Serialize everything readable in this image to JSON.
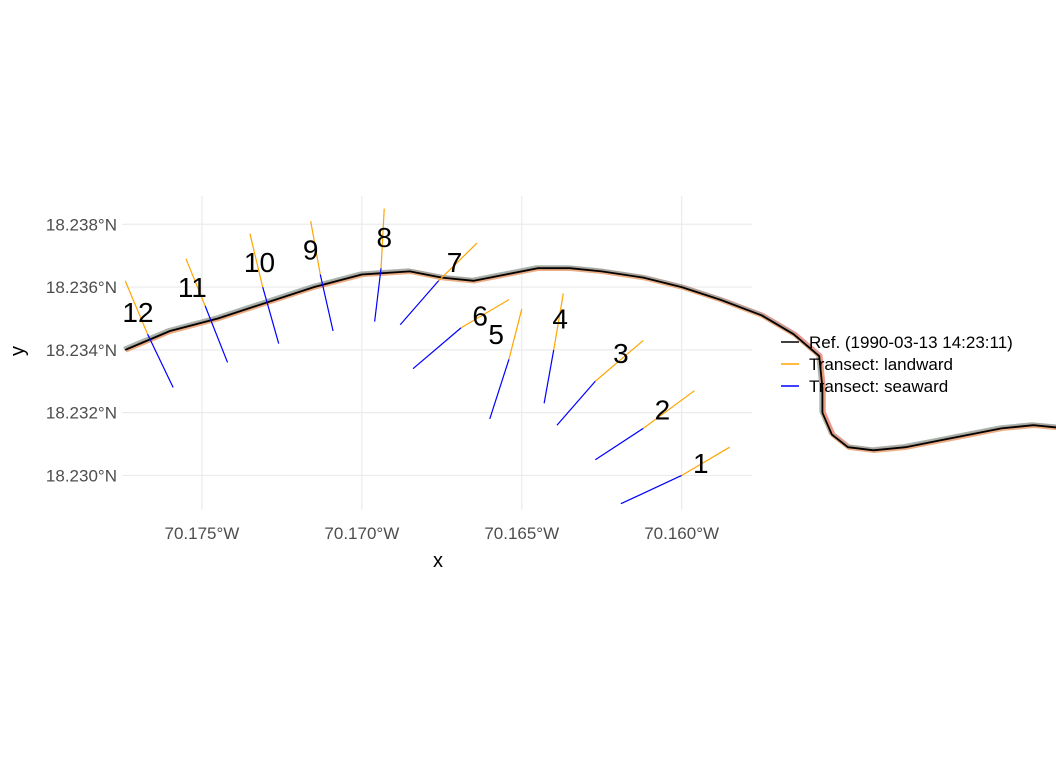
{
  "chart_data": {
    "type": "line",
    "xlabel": "x",
    "ylabel": "y",
    "xlim": [
      -70.1775,
      -70.1578
    ],
    "ylim": [
      18.2289,
      18.2389
    ],
    "x_ticks": [
      {
        "value": -70.175,
        "label": "70.175°W"
      },
      {
        "value": -70.17,
        "label": "70.170°W"
      },
      {
        "value": -70.165,
        "label": "70.165°W"
      },
      {
        "value": -70.16,
        "label": "70.160°W"
      }
    ],
    "y_ticks": [
      {
        "value": 18.23,
        "label": "18.230°N"
      },
      {
        "value": 18.232,
        "label": "18.232°N"
      },
      {
        "value": 18.234,
        "label": "18.234°N"
      },
      {
        "value": 18.236,
        "label": "18.236°N"
      },
      {
        "value": 18.238,
        "label": "18.238°N"
      }
    ],
    "grid": true,
    "legend_position": "right",
    "legend": [
      {
        "label": "Ref. (1990-03-13 14:23:11)",
        "color": "#000000"
      },
      {
        "label": "Transect: landward",
        "color": "#FFA500"
      },
      {
        "label": "Transect: seaward",
        "color": "#0000FF"
      }
    ],
    "reference_line": {
      "name": "Ref. (1990-03-13 14:23:11)",
      "color": "#000000",
      "points": [
        [
          -70.1774,
          18.234
        ],
        [
          -70.176,
          18.2346
        ],
        [
          -70.1745,
          18.235
        ],
        [
          -70.173,
          18.2355
        ],
        [
          -70.1715,
          18.236
        ],
        [
          -70.17,
          18.2364
        ],
        [
          -70.1685,
          18.2365
        ],
        [
          -70.1675,
          18.2363
        ],
        [
          -70.1665,
          18.2362
        ],
        [
          -70.1655,
          18.2364
        ],
        [
          -70.1645,
          18.2366
        ],
        [
          -70.1635,
          18.2366
        ],
        [
          -70.1625,
          18.2365
        ],
        [
          -70.1612,
          18.2363
        ],
        [
          -70.16,
          18.236
        ],
        [
          -70.1588,
          18.2356
        ],
        [
          -70.1575,
          18.2351
        ],
        [
          -70.1565,
          18.2345
        ],
        [
          -70.1557,
          18.2338
        ],
        [
          -70.1556,
          18.2328
        ],
        [
          -70.1556,
          18.232
        ],
        [
          -70.1553,
          18.2313
        ],
        [
          -70.1548,
          18.2309
        ],
        [
          -70.154,
          18.2308
        ],
        [
          -70.153,
          18.2309
        ],
        [
          -70.152,
          18.2311
        ],
        [
          -70.151,
          18.2313
        ],
        [
          -70.15,
          18.2315
        ],
        [
          -70.149,
          18.2316
        ],
        [
          -70.148,
          18.2315
        ],
        [
          -70.147,
          18.2312
        ],
        [
          -70.146,
          18.2308
        ],
        [
          -70.145,
          18.2302
        ],
        [
          -70.144,
          18.2296
        ],
        [
          -70.143,
          18.229
        ],
        [
          -70.142,
          18.2284
        ],
        [
          -70.141,
          18.2278
        ],
        [
          -70.14,
          18.2271
        ],
        [
          -70.1393,
          18.2265
        ],
        [
          -70.1388,
          18.2259
        ],
        [
          -70.1385,
          18.2255
        ],
        [
          -70.138,
          18.2252
        ]
      ]
    },
    "shorelines": [
      {
        "color": "#F08080",
        "offset": [
          5e-05,
          2e-05
        ]
      },
      {
        "color": "#9AA8A0",
        "offset": [
          -4e-05,
          4e-05
        ]
      },
      {
        "color": "#E8A070",
        "offset": [
          2e-05,
          -3e-05
        ]
      }
    ],
    "transects": [
      {
        "id": "1",
        "origin": [
          -70.16,
          18.23
        ],
        "landward": [
          -70.1585,
          18.2309
        ],
        "seaward": [
          -70.1619,
          18.2291
        ],
        "label_at": [
          -70.1594,
          18.2304
        ]
      },
      {
        "id": "2",
        "origin": [
          -70.1612,
          18.2315
        ],
        "landward": [
          -70.1596,
          18.2327
        ],
        "seaward": [
          -70.1627,
          18.2305
        ],
        "label_at": [
          -70.1606,
          18.2321
        ]
      },
      {
        "id": "3",
        "origin": [
          -70.1627,
          18.233
        ],
        "landward": [
          -70.1612,
          18.2343
        ],
        "seaward": [
          -70.1639,
          18.2316
        ],
        "label_at": [
          -70.1619,
          18.2339
        ]
      },
      {
        "id": "4",
        "origin": [
          -70.164,
          18.234
        ],
        "landward": [
          -70.1637,
          18.2358
        ],
        "seaward": [
          -70.1643,
          18.2323
        ],
        "label_at": [
          -70.1638,
          18.235
        ]
      },
      {
        "id": "5",
        "origin": [
          -70.1654,
          18.2337
        ],
        "landward": [
          -70.165,
          18.2353
        ],
        "seaward": [
          -70.166,
          18.2318
        ],
        "label_at": [
          -70.1658,
          18.2345
        ]
      },
      {
        "id": "6",
        "origin": [
          -70.1669,
          18.2347
        ],
        "landward": [
          -70.1654,
          18.2356
        ],
        "seaward": [
          -70.1684,
          18.2334
        ],
        "label_at": [
          -70.1663,
          18.2351
        ]
      },
      {
        "id": "7",
        "origin": [
          -70.1676,
          18.2362
        ],
        "landward": [
          -70.1664,
          18.2374
        ],
        "seaward": [
          -70.1688,
          18.2348
        ],
        "label_at": [
          -70.1671,
          18.2368
        ]
      },
      {
        "id": "8",
        "origin": [
          -70.1694,
          18.2366
        ],
        "landward": [
          -70.1693,
          18.2385
        ],
        "seaward": [
          -70.1696,
          18.2349
        ],
        "label_at": [
          -70.1693,
          18.2376
        ]
      },
      {
        "id": "9",
        "origin": [
          -70.1713,
          18.2364
        ],
        "landward": [
          -70.1716,
          18.2381
        ],
        "seaward": [
          -70.1709,
          18.2346
        ],
        "label_at": [
          -70.1716,
          18.2372
        ]
      },
      {
        "id": "10",
        "origin": [
          -70.1731,
          18.236
        ],
        "landward": [
          -70.1735,
          18.2377
        ],
        "seaward": [
          -70.1726,
          18.2342
        ],
        "label_at": [
          -70.1732,
          18.2368
        ]
      },
      {
        "id": "11",
        "origin": [
          -70.1749,
          18.2354
        ],
        "landward": [
          -70.1755,
          18.2369
        ],
        "seaward": [
          -70.1742,
          18.2336
        ],
        "label_at": [
          -70.1753,
          18.236
        ]
      },
      {
        "id": "12",
        "origin": [
          -70.1767,
          18.2345
        ],
        "landward": [
          -70.1774,
          18.2362
        ],
        "seaward": [
          -70.1759,
          18.2328
        ],
        "label_at": [
          -70.177,
          18.2352
        ]
      }
    ],
    "colors": {
      "landward": "#FFA500",
      "seaward": "#0000FF",
      "reference": "#000000"
    }
  }
}
